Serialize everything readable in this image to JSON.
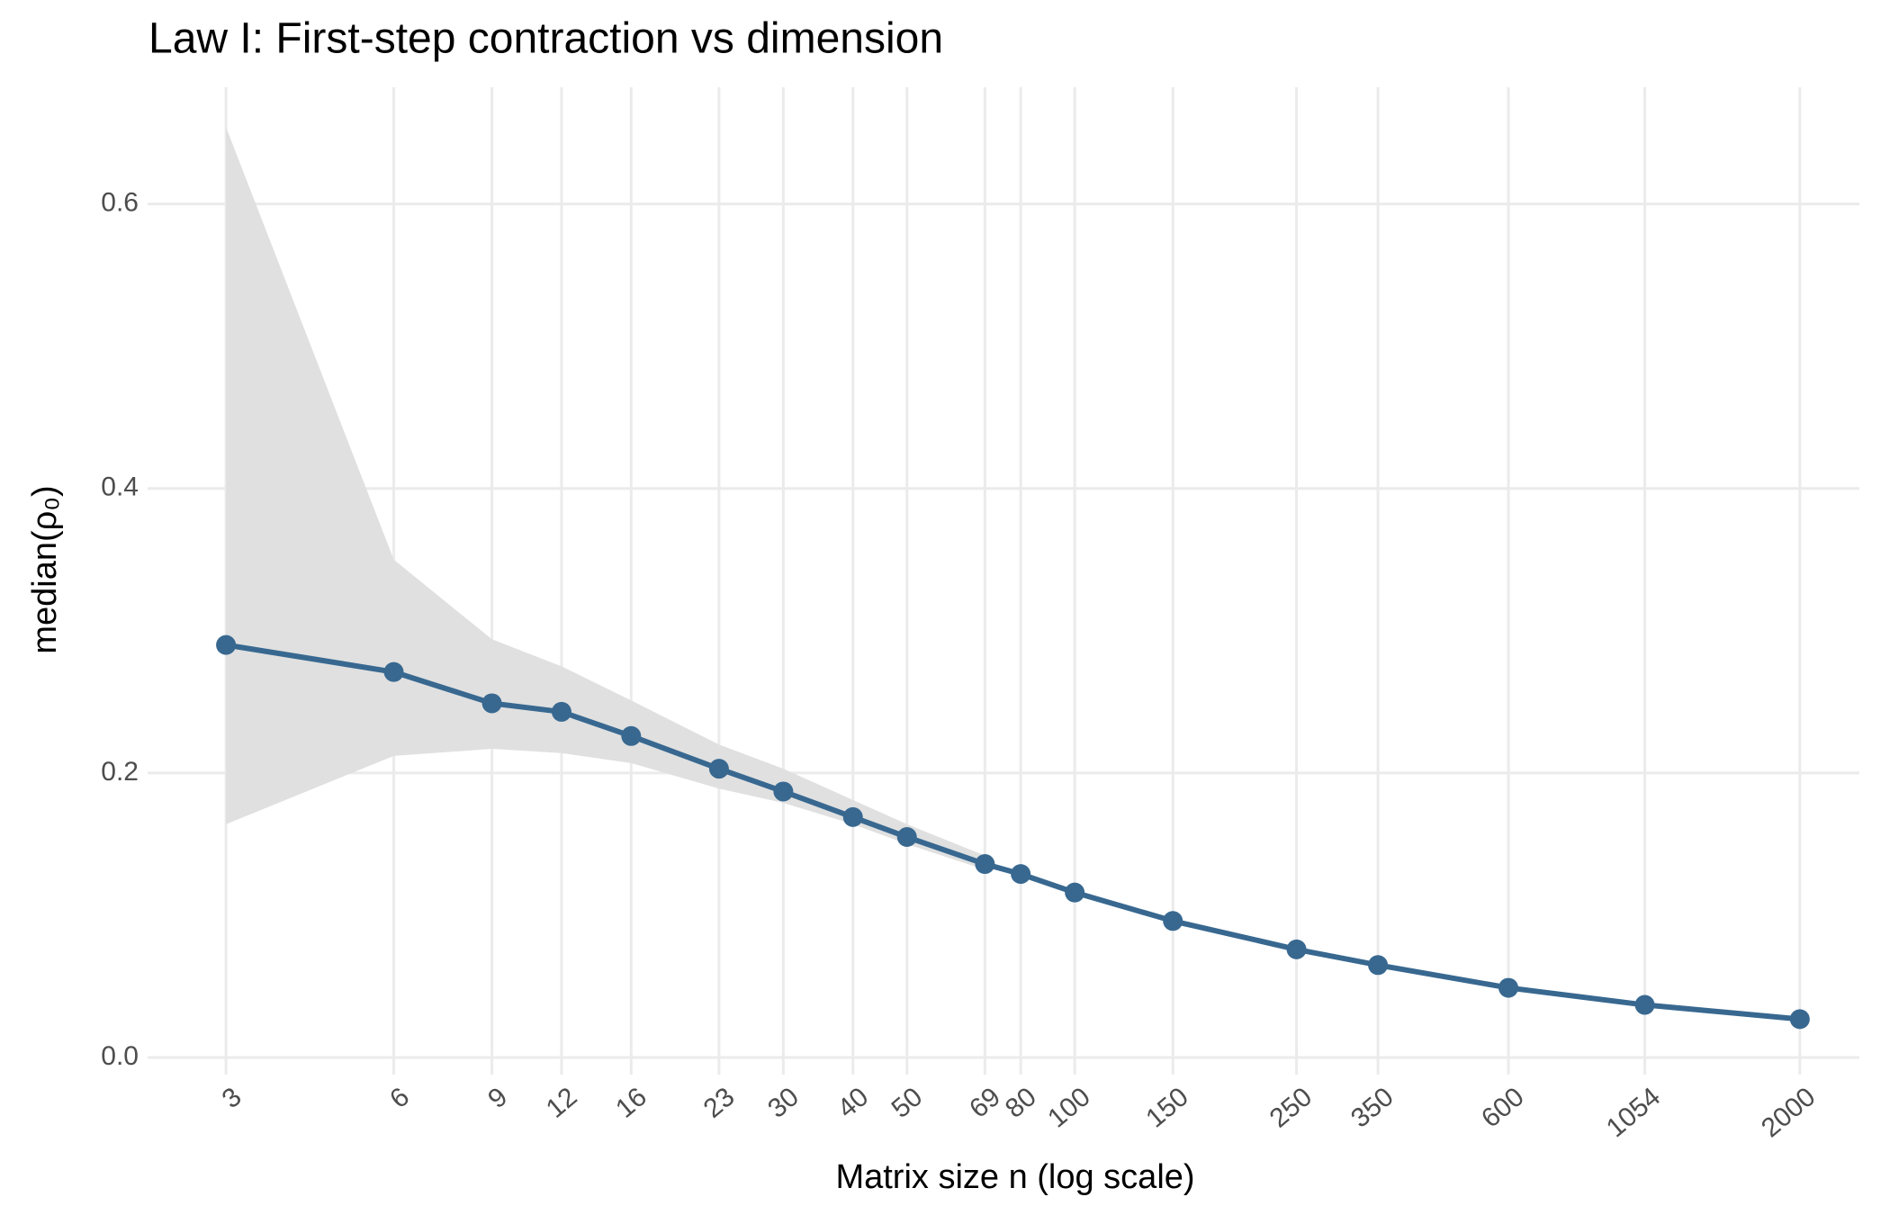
{
  "chart_data": {
    "type": "line",
    "title": "Law I: First-step contraction vs dimension",
    "x_label": "Matrix size n (log scale)",
    "y_label": "median(ρ₀)",
    "x": [
      3,
      6,
      9,
      12,
      16,
      23,
      30,
      40,
      50,
      69,
      80,
      100,
      150,
      250,
      350,
      600,
      1054,
      2000
    ],
    "series": [
      {
        "color": "#386890",
        "values": [
          0.29,
          0.271,
          0.249,
          0.243,
          0.226,
          0.203,
          0.187,
          0.169,
          0.155,
          0.136,
          0.129,
          0.116,
          0.096,
          0.076,
          0.065,
          0.049,
          0.037,
          0.027
        ],
        "upper": [
          0.654,
          0.35,
          0.294,
          0.275,
          0.251,
          0.22,
          0.203,
          0.181,
          0.164,
          0.142,
          null,
          null,
          null,
          null,
          null,
          null,
          null,
          null
        ],
        "lower": [
          0.164,
          0.212,
          0.217,
          0.214,
          0.207,
          0.189,
          0.179,
          0.164,
          0.15,
          0.132,
          null,
          null,
          null,
          null,
          null,
          null,
          null,
          null
        ],
        "band_color": "#e0e0e0"
      }
    ],
    "xscale": "log",
    "xlim": [
      2.17,
      2558
    ],
    "xticks": [
      3,
      6,
      9,
      12,
      16,
      23,
      30,
      40,
      50,
      69,
      80,
      100,
      150,
      250,
      350,
      600,
      1054,
      2000
    ],
    "ylim": [
      -0.012,
      0.682
    ],
    "yticks": [
      {
        "value": 0,
        "label": "0.0"
      },
      {
        "value": 0.2,
        "label": "0.2"
      },
      {
        "value": 0.4,
        "label": "0.4"
      },
      {
        "value": 0.6,
        "label": "0.6"
      }
    ],
    "grid": true
  }
}
